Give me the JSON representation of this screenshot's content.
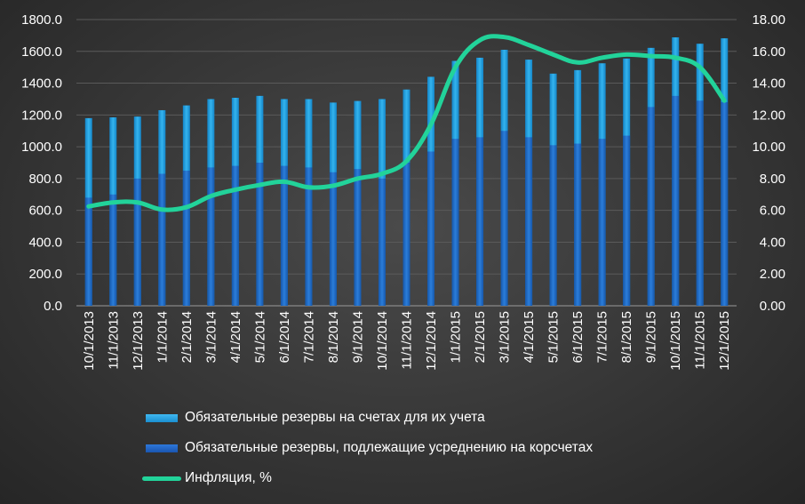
{
  "chart_data": {
    "type": "bar",
    "categories": [
      "10/1/2013",
      "11/1/2013",
      "12/1/2013",
      "1/1/2014",
      "2/1/2014",
      "3/1/2014",
      "4/1/2014",
      "5/1/2014",
      "6/1/2014",
      "7/1/2014",
      "8/1/2014",
      "9/1/2014",
      "10/1/2014",
      "11/1/2014",
      "12/1/2014",
      "1/1/2015",
      "2/1/2015",
      "3/1/2015",
      "4/1/2015",
      "5/1/2015",
      "6/1/2015",
      "7/1/2015",
      "8/1/2015",
      "9/1/2015",
      "10/1/2015",
      "11/1/2015",
      "12/1/2015"
    ],
    "series": [
      {
        "name": "Обязательные резервы на счетах для их учета",
        "kind": "bar",
        "axis": "left",
        "color": "#1aa0e0",
        "values": [
          1180,
          1185,
          1190,
          1230,
          1260,
          1300,
          1308,
          1320,
          1300,
          1300,
          1278,
          1288,
          1300,
          1360,
          1440,
          1540,
          1560,
          1610,
          1548,
          1460,
          1482,
          1525,
          1555,
          1622,
          1688,
          1648,
          1682
        ]
      },
      {
        "name": "Обязательные резервы, подлежащие усреднению на корсчетах",
        "kind": "bar",
        "axis": "left",
        "color": "#1d62c4",
        "values": [
          680,
          700,
          800,
          830,
          850,
          870,
          880,
          900,
          880,
          870,
          840,
          860,
          800,
          900,
          970,
          1050,
          1060,
          1100,
          1060,
          1010,
          1020,
          1050,
          1070,
          1250,
          1320,
          1290,
          1280
        ]
      },
      {
        "name": "Инфляция, %",
        "kind": "line",
        "axis": "right",
        "color": "#22d39a",
        "values": [
          6.25,
          6.5,
          6.5,
          6.05,
          6.2,
          6.9,
          7.3,
          7.6,
          7.8,
          7.45,
          7.55,
          8.0,
          8.3,
          9.1,
          11.4,
          15.0,
          16.7,
          16.9,
          16.4,
          15.8,
          15.3,
          15.6,
          15.8,
          15.7,
          15.6,
          15.0,
          12.9
        ]
      }
    ],
    "ylim": [
      0,
      1800
    ],
    "y2lim": [
      0,
      18
    ],
    "yticks": [
      "0.0",
      "200.0",
      "400.0",
      "600.0",
      "800.0",
      "1000.0",
      "1200.0",
      "1400.0",
      "1600.0",
      "1800.0"
    ],
    "y2ticks": [
      "0.00",
      "2.00",
      "4.00",
      "6.00",
      "8.00",
      "10.00",
      "12.00",
      "14.00",
      "16.00",
      "18.00"
    ],
    "grid": true,
    "title": "",
    "xlabel": "",
    "ylabel": "",
    "legend_position": "bottom"
  },
  "legend": {
    "items": [
      {
        "label": "Обязательные резервы на счетах для их учета",
        "color": "#1aa0e0"
      },
      {
        "label": "Обязательные резервы, подлежащие усреднению на корсчетах",
        "color": "#1d62c4"
      },
      {
        "label": "Инфляция, %",
        "color": "#22d39a"
      }
    ]
  }
}
